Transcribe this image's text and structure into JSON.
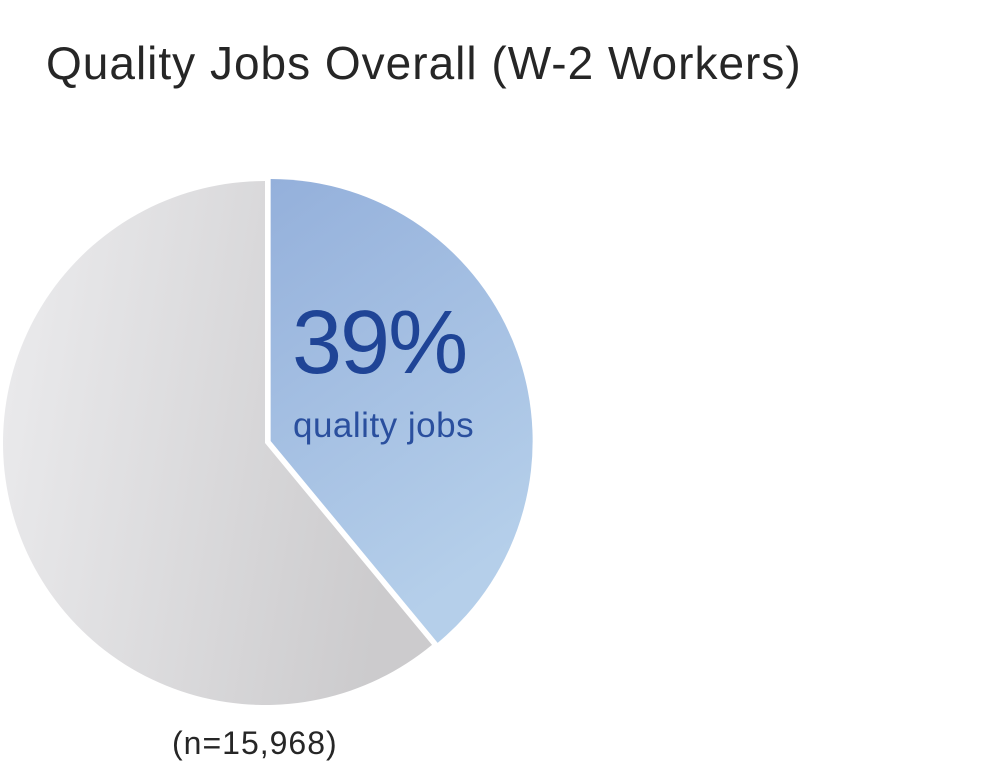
{
  "chart_data": {
    "type": "pie",
    "title": "Quality Jobs Overall (W-2 Workers)",
    "slices": [
      {
        "label": "quality jobs",
        "value": 39,
        "display": "39%",
        "color": "#a4bfe1",
        "exploded": true
      },
      {
        "value": 61,
        "color": "#dcdbdd",
        "exploded": false
      }
    ],
    "note": "(n=15,968)"
  }
}
